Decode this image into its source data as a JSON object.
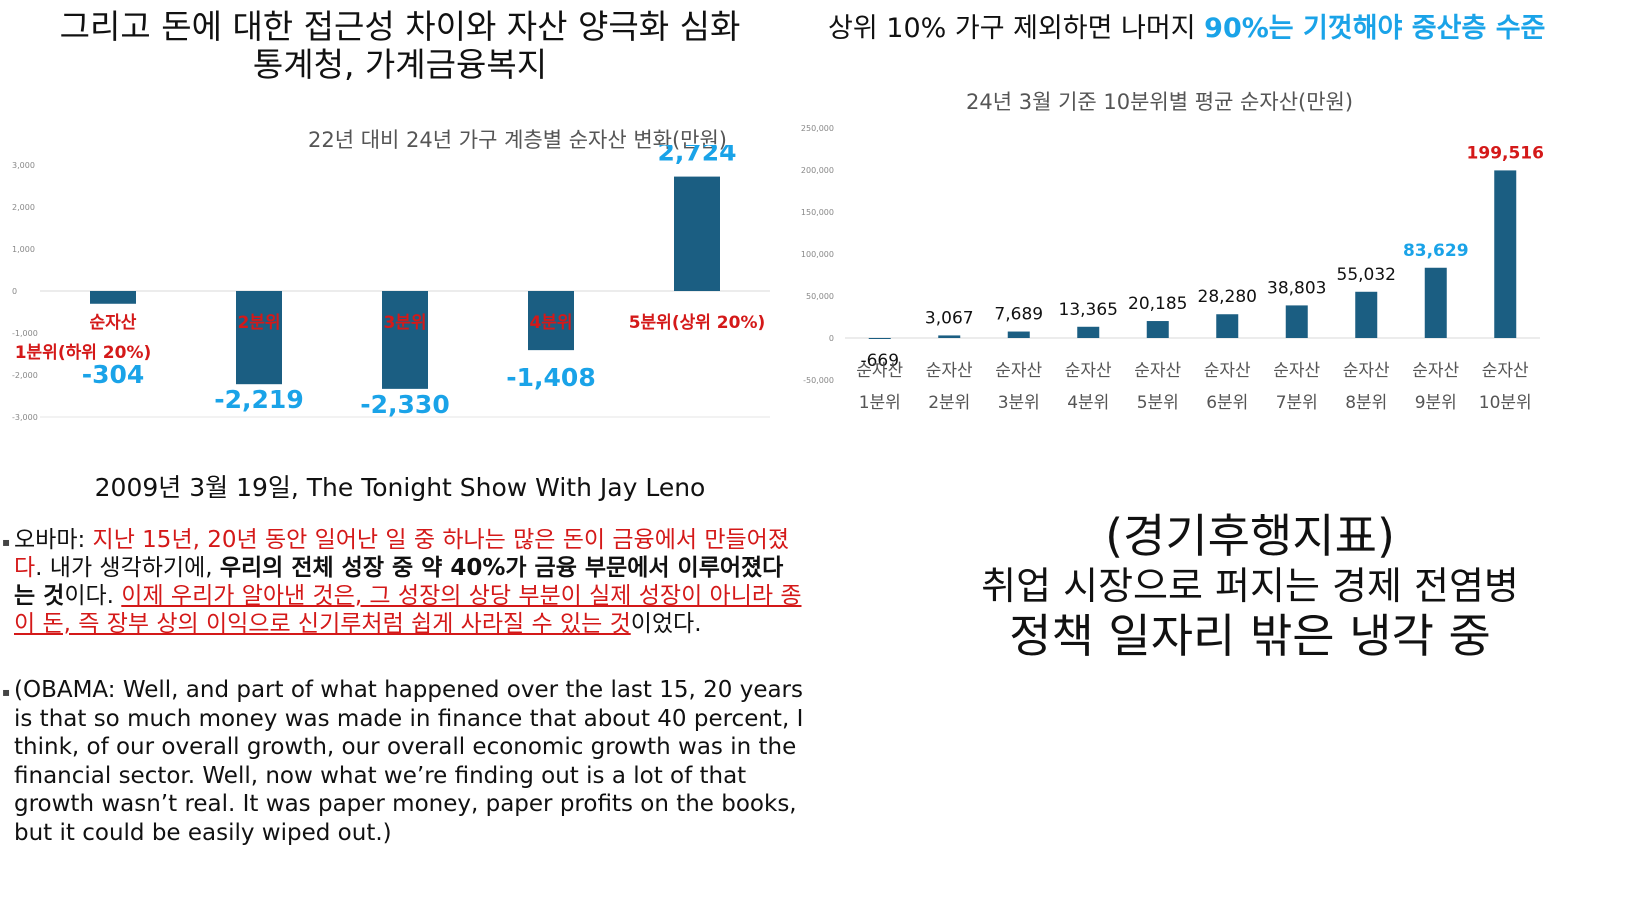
{
  "left": {
    "title_line1": "그리고 돈에 대한 접근성 차이와 자산 양극화 심화",
    "title_line2": "통계청, 가계금융복지"
  },
  "right": {
    "title_part1": "상위 10% 가구 제외하면 나머지 ",
    "title_part2": "90%는 기껏해야 중산층 수준"
  },
  "quote": {
    "heading": "2009년 3월 19일, The Tonight Show With Jay Leno",
    "ko_speaker": "오바마: ",
    "ko_red1": "지난 15년, 20년 동안 일어난 일 중 하나는 많은 돈이 금융에서 만들어졌다",
    "ko_plain1": ". 내가 생각하기에, ",
    "ko_bold": "우리의 전체 성장 중 약 40%가 금융 부문에서 이루어졌다는 것",
    "ko_plain2": "이다. ",
    "ko_red2": "이제 우리가 알아낸 것은, 그 성장의 상당 부분이 실제 성장이 아니라 종이 돈, 즉 장부 상의 이익으로 신기루처럼 쉽게 사라질 수 있는 것",
    "ko_plain3": "이었다.",
    "en": "(OBAMA: Well, and part of what happened over the last 15, 20 years is that so much money was made in finance that about 40 percent, I think, of our overall growth, our overall economic growth was in the financial sector. Well, now what we’re finding out is a lot of that growth wasn’t real. It was paper money, paper profits on the books, but it could be easily wiped out.)"
  },
  "indicator": {
    "line1": "(경기후행지표)",
    "line2": "취업 시장으로 퍼지는 경제 전염병",
    "line3": "정책 일자리 밖은 냉각 중"
  },
  "colors": {
    "bar": "#1b5e82",
    "label_blue": "#1aa3e8",
    "label_red": "#d41919",
    "axis_text": "#888888",
    "grid": "#d9d9d9"
  },
  "chart_data": [
    {
      "type": "bar",
      "title": "22년 대비 24년 가구 계층별 순자산 변화(만원)",
      "categories": [
        "순자산 1분위(하위 20%)",
        "2분위",
        "3분위",
        "4분위",
        "5분위(상위 20%)"
      ],
      "category_labels": [
        [
          "순자산",
          "1분위(하위 20%)"
        ],
        [
          "2분위"
        ],
        [
          "3분위"
        ],
        [
          "4분위"
        ],
        [
          "5분위(상위 20%)"
        ]
      ],
      "values": [
        -304,
        -2219,
        -2330,
        -1408,
        2724
      ],
      "value_labels": [
        "-304",
        "-2,219",
        "-2,330",
        "-1,408",
        "2,724"
      ],
      "ylim": [
        -3000,
        3000
      ],
      "yticks": [
        3000,
        2000,
        1000,
        0,
        -1000,
        -2000,
        -3000
      ],
      "ytick_labels": [
        "3,000",
        "2,000",
        "1,000",
        "0",
        "-1,000",
        "-2,000",
        "-3,000"
      ],
      "grid": false
    },
    {
      "type": "bar",
      "title": "24년 3월 기준 10분위별 평균 순자산(만원)",
      "categories": [
        "1분위",
        "2분위",
        "3분위",
        "4분위",
        "5분위",
        "6분위",
        "7분위",
        "8분위",
        "9분위",
        "10분위"
      ],
      "category_prefix": "순자산",
      "values": [
        -669,
        3067,
        7689,
        13365,
        20185,
        28280,
        38803,
        55032,
        83629,
        199516
      ],
      "value_labels": [
        "-669",
        "3,067",
        "7,689",
        "13,365",
        "20,185",
        "28,280",
        "38,803",
        "55,032",
        "83,629",
        "199,516"
      ],
      "label_colors": [
        "#111111",
        "#111111",
        "#111111",
        "#111111",
        "#111111",
        "#111111",
        "#111111",
        "#111111",
        "#1aa3e8",
        "#d41919"
      ],
      "ylim": [
        -50000,
        250000
      ],
      "yticks": [
        250000,
        200000,
        150000,
        100000,
        50000,
        0,
        -50000
      ],
      "ytick_labels": [
        "250,000",
        "200,000",
        "150,000",
        "100,000",
        "50,000",
        "0",
        "-50,000"
      ],
      "grid": false
    }
  ]
}
